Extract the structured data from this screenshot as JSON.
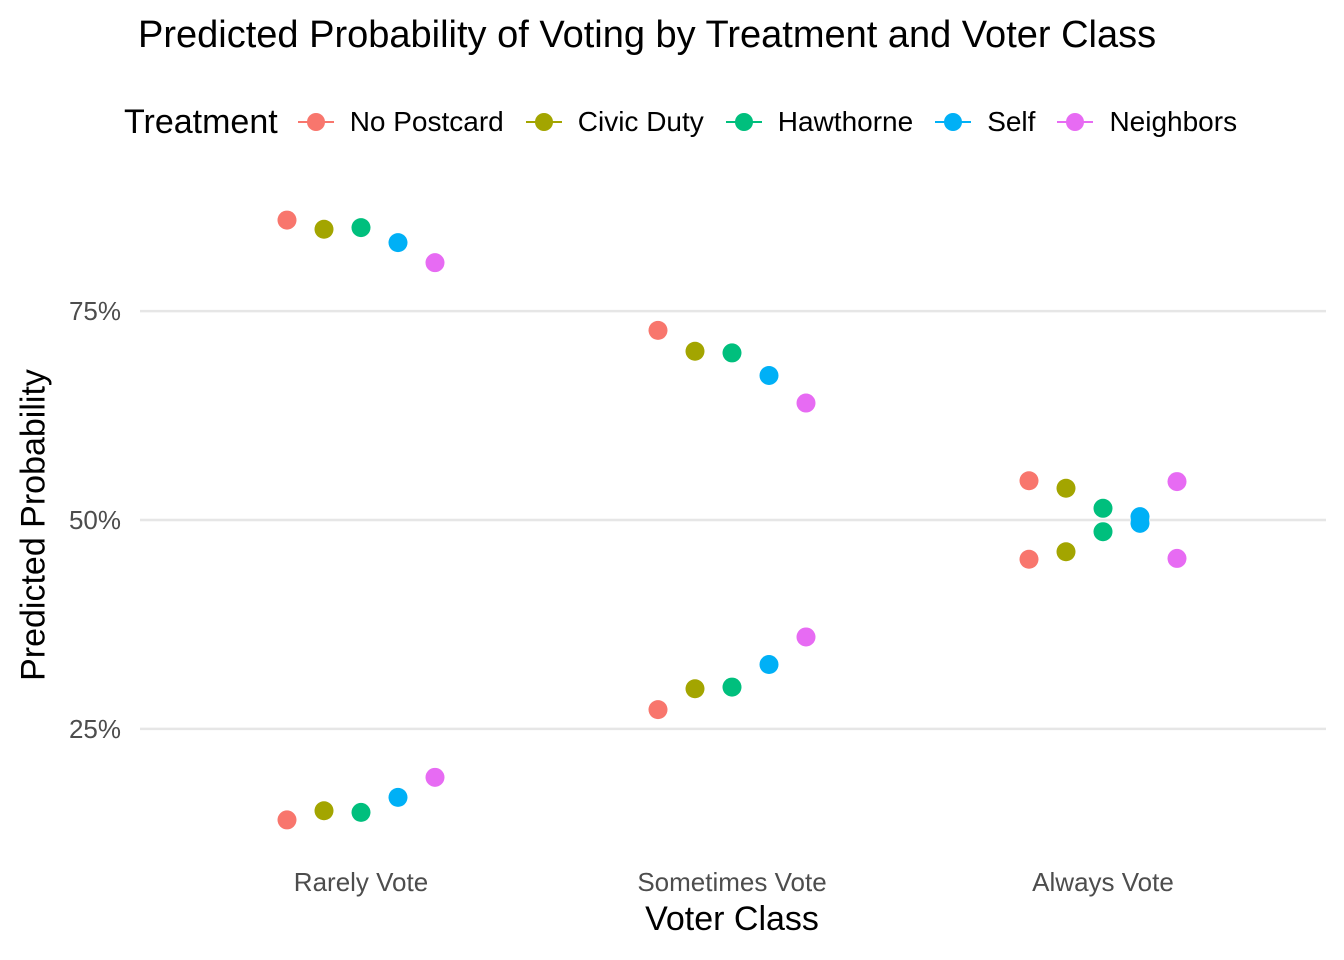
{
  "chart_data": {
    "type": "scatter",
    "title": "Predicted Probability of Voting by Treatment and Voter Class",
    "xlabel": "Voter Class",
    "ylabel": "Predicted Probability",
    "categories": [
      "Rarely Vote",
      "Sometimes Vote",
      "Always Vote"
    ],
    "legend_title": "Treatment",
    "legend_position": "top",
    "ylim": [
      0.105,
      0.895
    ],
    "y_ticks": [
      0.25,
      0.5,
      0.75
    ],
    "y_tick_labels": [
      "25%",
      "50%",
      "75%"
    ],
    "grid": "major horizontal only",
    "series": [
      {
        "name": "No Postcard",
        "color": "#F8766D",
        "upper": [
          0.859,
          0.727,
          0.547
        ],
        "lower": [
          0.141,
          0.273,
          0.453
        ]
      },
      {
        "name": "Civic Duty",
        "color": "#A3A500",
        "upper": [
          0.848,
          0.702,
          0.538
        ],
        "lower": [
          0.152,
          0.298,
          0.462
        ]
      },
      {
        "name": "Hawthorne",
        "color": "#00BF7D",
        "upper": [
          0.85,
          0.7,
          0.514
        ],
        "lower": [
          0.15,
          0.3,
          0.486
        ]
      },
      {
        "name": "Self",
        "color": "#00B0F6",
        "upper": [
          0.832,
          0.673,
          0.504
        ],
        "lower": [
          0.168,
          0.327,
          0.496
        ]
      },
      {
        "name": "Neighbors",
        "color": "#E76BF3",
        "upper": [
          0.808,
          0.64,
          0.546
        ],
        "lower": [
          0.192,
          0.36,
          0.454
        ]
      }
    ]
  }
}
